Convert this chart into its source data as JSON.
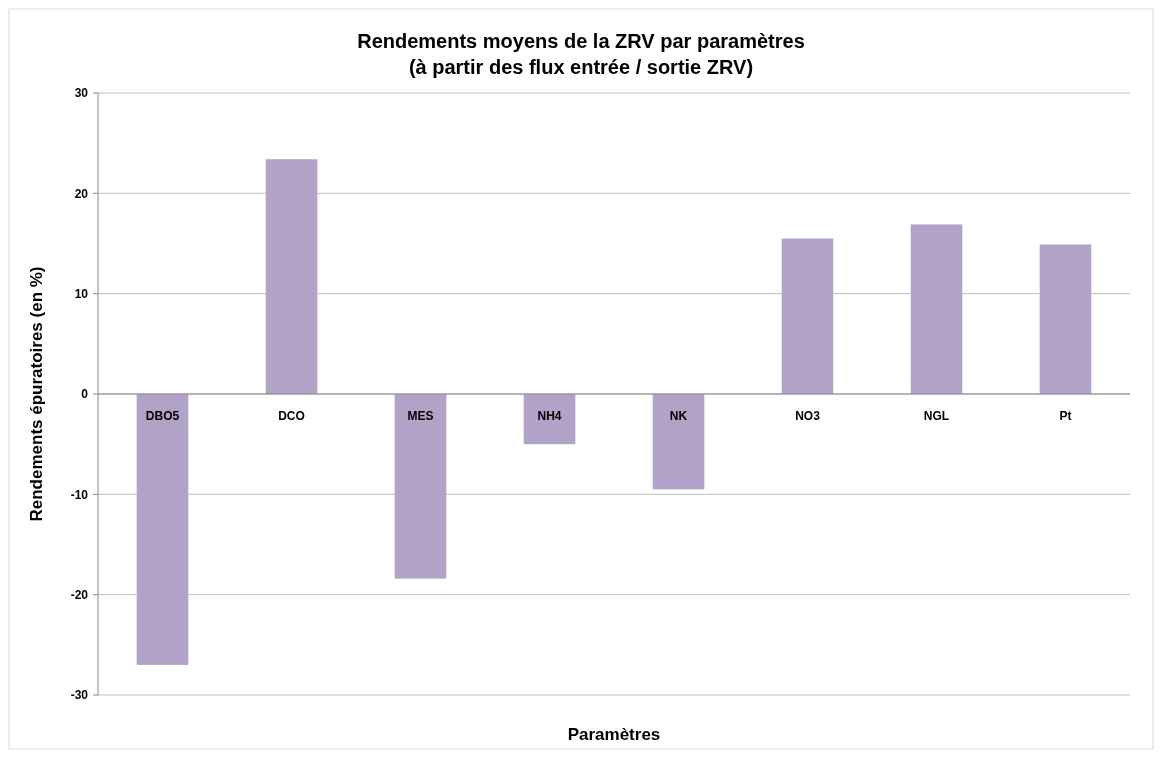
{
  "chart_data": {
    "type": "bar",
    "title": "Rendements moyens de la ZRV par paramètres",
    "subtitle": "(à partir des flux entrée / sortie ZRV)",
    "xlabel": "Paramètres",
    "ylabel": "Rendements épuratoires (en %)",
    "categories": [
      "DBO5",
      "DCO",
      "MES",
      "NH4",
      "NK",
      "NO3",
      "NGL",
      "Pt"
    ],
    "values": [
      -27.0,
      23.4,
      -18.4,
      -5.0,
      -9.5,
      15.5,
      16.9,
      14.9
    ],
    "color": "#b3a2c7",
    "ylim": [
      -30,
      30
    ],
    "yticks": [
      -30,
      -20,
      -10,
      0,
      10,
      20,
      30
    ],
    "grid": "y"
  }
}
